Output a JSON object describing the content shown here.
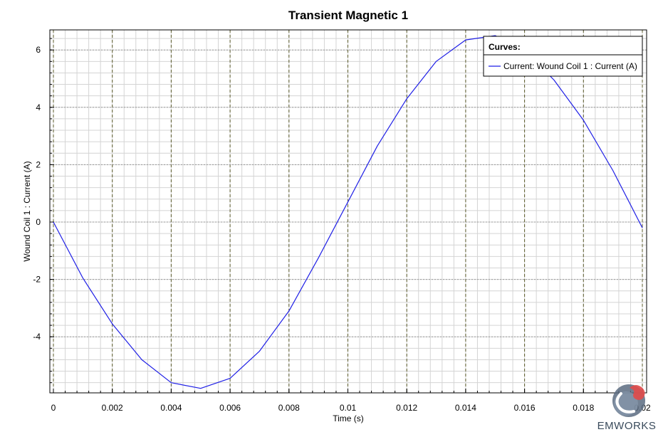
{
  "chart_data": {
    "type": "line",
    "title": "Transient Magnetic 1",
    "xlabel": "Time (s)",
    "ylabel": "Wound Coil 1 : Current (A)",
    "xlim": [
      0,
      0.02
    ],
    "ylim": [
      -5.9,
      6.7
    ],
    "x_ticks": [
      0,
      0.002,
      0.004,
      0.006,
      0.008,
      0.01,
      0.012,
      0.014,
      0.016,
      0.018,
      0.02
    ],
    "x_tick_labels": [
      "0",
      "0.002",
      "0.004",
      "0.006",
      "0.008",
      "0.01",
      "0.012",
      "0.014",
      "0.016",
      "0.018",
      "0.02"
    ],
    "y_ticks": [
      -4,
      -2,
      0,
      2,
      4,
      6
    ],
    "y_tick_labels": [
      "-4",
      "-2",
      "0",
      "2",
      "4",
      "6"
    ],
    "grid": true,
    "legend_position": "top-right",
    "legend_title": "Curves:",
    "series": [
      {
        "name": "Current:  Wound Coil 1 : Current (A)",
        "color": "#1f1fe6",
        "x": [
          0,
          0.001,
          0.002,
          0.003,
          0.004,
          0.005,
          0.006,
          0.007,
          0.008,
          0.009,
          0.01,
          0.011,
          0.012,
          0.013,
          0.014,
          0.015,
          0.016,
          0.017,
          0.018,
          0.019,
          0.02
        ],
        "y": [
          0.0,
          -1.95,
          -3.55,
          -4.8,
          -5.6,
          -5.8,
          -5.45,
          -4.5,
          -3.1,
          -1.25,
          0.7,
          2.65,
          4.3,
          5.6,
          6.35,
          6.5,
          6.0,
          4.95,
          3.55,
          1.8,
          -0.2
        ]
      }
    ]
  },
  "branding": {
    "name": "EMWORKS",
    "logo": "emworks-logo-icon"
  }
}
